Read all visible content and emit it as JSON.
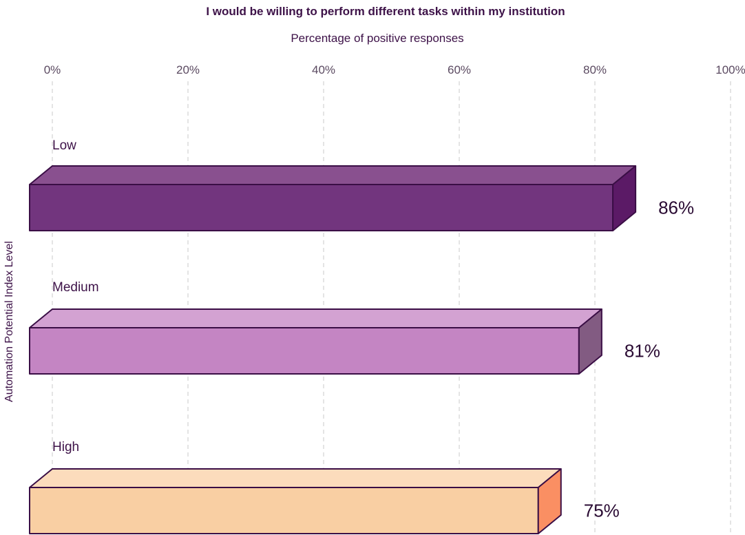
{
  "chart_data": {
    "type": "bar",
    "orientation": "horizontal",
    "style": "3d",
    "title": "I would be willing to perform different tasks within my institution",
    "subtitle": "Percentage of positive responses",
    "ylabel": "Automation Potential Index Level",
    "xlim": [
      0,
      100
    ],
    "x_ticks": [
      "0%",
      "20%",
      "40%",
      "60%",
      "80%",
      "100%"
    ],
    "x_tick_values": [
      0,
      20,
      40,
      60,
      80,
      100
    ],
    "x_axis_position": "top",
    "grid": "vertical dashed",
    "categories": [
      "Low",
      "Medium",
      "High"
    ],
    "values": [
      86,
      81,
      75
    ],
    "value_labels": [
      "86%",
      "81%",
      "75%"
    ],
    "colors": [
      {
        "front": "#72357e",
        "top": "#89508f",
        "side": "#5b1a66"
      },
      {
        "front": "#c485c3",
        "top": "#d3a2d2",
        "side": "#825b82"
      },
      {
        "front": "#f9cfa3",
        "top": "#fcdcbc",
        "side": "#fa8f63"
      }
    ]
  }
}
